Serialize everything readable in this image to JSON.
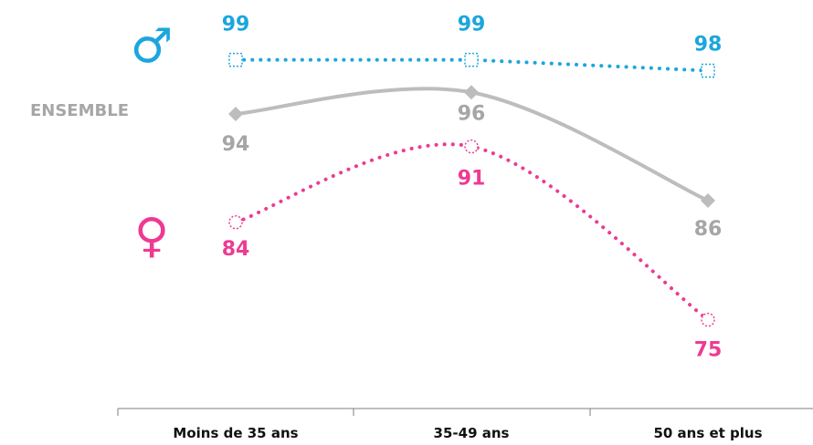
{
  "chart_data": {
    "type": "line",
    "categories": [
      "Moins de 35 ans",
      "35-49 ans",
      "50 ans et plus"
    ],
    "series": [
      {
        "name": "♂",
        "values": [
          99,
          99,
          98
        ],
        "color": "#1ba6dd",
        "style": "dotted",
        "marker": "square-open",
        "label": ""
      },
      {
        "name": "ENSEMBLE",
        "values": [
          94,
          96,
          86
        ],
        "color": "#bdbdbd",
        "style": "solid-curve",
        "marker": "diamond",
        "label": "ENSEMBLE"
      },
      {
        "name": "♀",
        "values": [
          84,
          91,
          75
        ],
        "color": "#ee3a93",
        "style": "dotted-curve",
        "marker": "circle-open",
        "label": ""
      }
    ],
    "ylim": [
      70,
      102
    ],
    "grid": false,
    "legend": "left"
  },
  "icons": {
    "male": {
      "name": "male-symbol-icon",
      "glyph": "♂",
      "color": "#1ba6dd"
    },
    "female": {
      "name": "female-symbol-icon",
      "glyph": "♀",
      "color": "#ee3a93"
    }
  }
}
